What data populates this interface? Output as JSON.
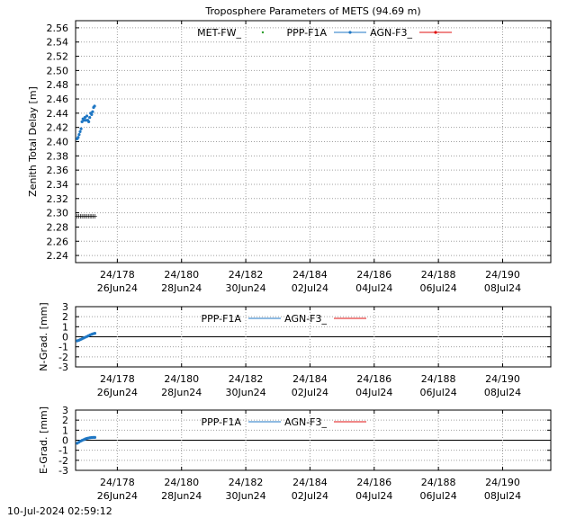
{
  "timestamp": "10-Jul-2024 02:59:12",
  "colors": {
    "met": "#2a9d2a",
    "ppp": "#1f77c4",
    "agn": "#e01010",
    "grid": "#a0a0a0"
  },
  "chart_data": [
    {
      "type": "scatter",
      "title": "Troposphere Parameters of METS (94.69 m)",
      "xlabel": "",
      "ylabel": "Zenith Total Delay [m]",
      "xlim": [
        176.7,
        191.5
      ],
      "ylim": [
        2.23,
        2.57
      ],
      "yticks": [
        "2.24",
        "2.26",
        "2.28",
        "2.30",
        "2.32",
        "2.34",
        "2.36",
        "2.38",
        "2.40",
        "2.42",
        "2.44",
        "2.46",
        "2.48",
        "2.50",
        "2.52",
        "2.54",
        "2.56"
      ],
      "xticks": [
        {
          "doy": "24/178",
          "date": "26Jun24"
        },
        {
          "doy": "24/180",
          "date": "28Jun24"
        },
        {
          "doy": "24/182",
          "date": "30Jun24"
        },
        {
          "doy": "24/184",
          "date": "02Jul24"
        },
        {
          "doy": "24/186",
          "date": "04Jul24"
        },
        {
          "doy": "24/188",
          "date": "06Jul24"
        },
        {
          "doy": "24/190",
          "date": "08Jul24"
        }
      ],
      "grid": true,
      "legend_position": "top",
      "series": [
        {
          "name": "MET-FW_",
          "x": [
            176.75,
            176.8,
            176.85,
            176.9,
            176.95,
            177.0,
            177.05,
            177.1,
            177.15,
            177.2,
            177.25,
            177.3
          ],
          "y": [
            2.296,
            2.296,
            2.296,
            2.296,
            2.296,
            2.296,
            2.296,
            2.296,
            2.296,
            2.296,
            2.296,
            2.296
          ]
        },
        {
          "name": "PPP-F1A",
          "x": [
            176.75,
            176.78,
            176.81,
            176.84,
            176.87,
            176.9,
            176.93,
            176.96,
            176.99,
            177.02,
            177.05,
            177.08,
            177.11,
            177.14,
            177.17,
            177.2,
            177.23,
            177.26,
            177.29
          ],
          "y": [
            2.404,
            2.406,
            2.41,
            2.414,
            2.418,
            2.428,
            2.432,
            2.43,
            2.434,
            2.43,
            2.436,
            2.43,
            2.428,
            2.434,
            2.44,
            2.438,
            2.442,
            2.448,
            2.45
          ]
        },
        {
          "name": "AGN-F3_",
          "x": [],
          "y": []
        }
      ]
    },
    {
      "type": "line",
      "title": "",
      "xlabel": "",
      "ylabel": "N-Grad. [mm]",
      "xlim": [
        176.7,
        191.5
      ],
      "ylim": [
        -3,
        3
      ],
      "yticks": [
        "-3",
        "-2",
        "-1",
        "0",
        "1",
        "2",
        "3"
      ],
      "grid": true,
      "legend_position": "top",
      "series": [
        {
          "name": "PPP-F1A",
          "x": [
            176.75,
            176.8,
            176.85,
            176.9,
            176.95,
            177.0,
            177.05,
            177.1,
            177.15,
            177.2,
            177.25,
            177.3
          ],
          "y": [
            -0.4,
            -0.35,
            -0.28,
            -0.2,
            -0.12,
            -0.05,
            0.02,
            0.1,
            0.18,
            0.25,
            0.3,
            0.35
          ]
        },
        {
          "name": "AGN-F3_",
          "x": [],
          "y": []
        }
      ]
    },
    {
      "type": "line",
      "title": "",
      "xlabel": "",
      "ylabel": "E-Grad. [mm]",
      "xlim": [
        176.7,
        191.5
      ],
      "ylim": [
        -3,
        3
      ],
      "yticks": [
        "-3",
        "-2",
        "-1",
        "0",
        "1",
        "2",
        "3"
      ],
      "grid": true,
      "legend_position": "top",
      "series": [
        {
          "name": "PPP-F1A",
          "x": [
            176.75,
            176.8,
            176.85,
            176.9,
            176.95,
            177.0,
            177.05,
            177.1,
            177.15,
            177.2,
            177.25,
            177.3
          ],
          "y": [
            -0.3,
            -0.2,
            -0.1,
            -0.02,
            0.05,
            0.12,
            0.18,
            0.22,
            0.25,
            0.27,
            0.28,
            0.28
          ]
        },
        {
          "name": "AGN-F3_",
          "x": [],
          "y": []
        }
      ]
    }
  ]
}
